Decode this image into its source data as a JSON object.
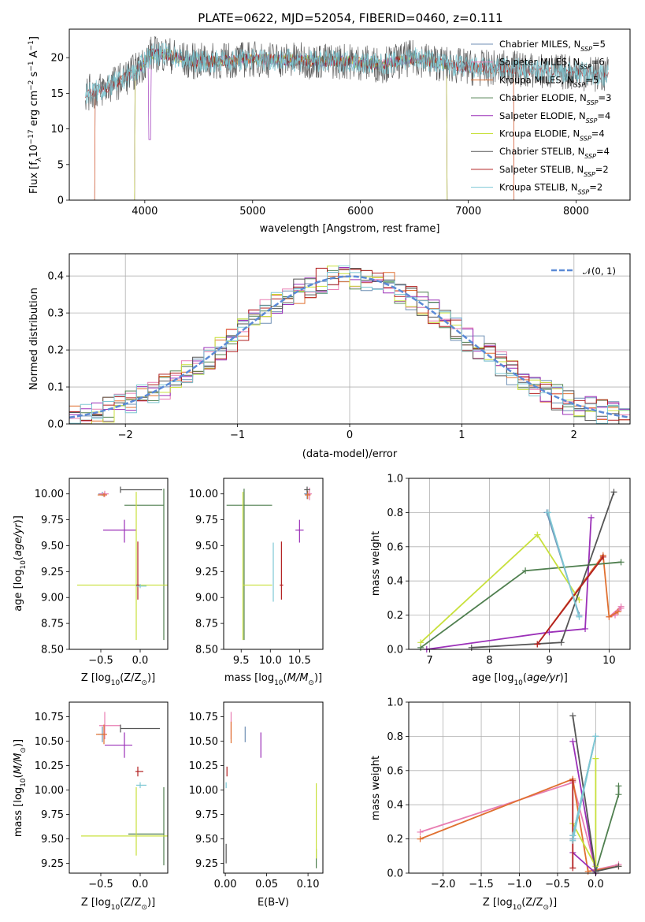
{
  "page": {
    "title": "PLATE=0622, MJD=52054, FIBERID=0460, z=0.111"
  },
  "colors": {
    "chabrier_miles": "#6f8fb4",
    "salpeter_miles": "#e87db2",
    "kroupa_miles": "#e07030",
    "chabrier_elodie": "#4f7f4f",
    "salpeter_elodie": "#9b30b8",
    "kroupa_elodie": "#c8e03c",
    "chabrier_stelib": "#555555",
    "salpeter_stelib": "#b22020",
    "kroupa_stelib": "#7ec8d4",
    "normal": "#5b8ad6"
  },
  "legend": {
    "spectrum": [
      {
        "text": "Chabrier MILES, N",
        "sub": "SSP",
        "tail": "=5",
        "color": "chabrier_miles"
      },
      {
        "text": "Salpeter MILES, N",
        "sub": "SSP",
        "tail": "=6",
        "color": "salpeter_miles"
      },
      {
        "text": "Kroupa MILES, N",
        "sub": "SSP",
        "tail": "=5",
        "color": "kroupa_miles"
      },
      {
        "text": "Chabrier ELODIE, N",
        "sub": "SSP",
        "tail": "=3",
        "color": "chabrier_elodie"
      },
      {
        "text": "Salpeter ELODIE, N",
        "sub": "SSP",
        "tail": "=4",
        "color": "salpeter_elodie"
      },
      {
        "text": "Kroupa ELODIE, N",
        "sub": "SSP",
        "tail": "=4",
        "color": "kroupa_elodie"
      },
      {
        "text": "Chabrier STELIB, N",
        "sub": "SSP",
        "tail": "=4",
        "color": "chabrier_stelib"
      },
      {
        "text": "Salpeter STELIB, N",
        "sub": "SSP",
        "tail": "=2",
        "color": "salpeter_stelib"
      },
      {
        "text": "Kroupa STELIB, N",
        "sub": "SSP",
        "tail": "=2",
        "color": "kroupa_stelib"
      }
    ],
    "normal": "𝒩(0, 1)"
  },
  "chart_data": [
    {
      "id": "spectrum",
      "type": "line",
      "xlabel": "wavelength [Angstrom, rest frame]",
      "ylabel": "Flux [f_λ 10^-17 erg cm^-2 s^-1 A^-1]",
      "xlim": [
        3300,
        8500
      ],
      "ylim": [
        0,
        24
      ],
      "xticks": [
        4000,
        5000,
        6000,
        7000,
        8000
      ],
      "yticks": [
        0,
        5,
        10,
        15,
        20
      ],
      "continuum": {
        "x": [
          3450,
          3600,
          3800,
          3950,
          4050,
          4200,
          4400,
          4700,
          5000,
          5300,
          5600,
          5900,
          6200,
          6500,
          6800,
          7100,
          7400,
          7700,
          8000,
          8300
        ],
        "y": [
          15.0,
          15.5,
          17.0,
          18.5,
          20.5,
          20.5,
          19.5,
          19.5,
          19.8,
          19.7,
          19.5,
          19.5,
          19.0,
          20.0,
          19.0,
          18.5,
          18.5,
          18.0,
          18.0,
          17.5
        ]
      },
      "model_ranges": [
        {
          "model": "chabrier_miles",
          "x": [
            3540,
            7420
          ]
        },
        {
          "model": "salpeter_miles",
          "x": [
            3540,
            7420
          ]
        },
        {
          "model": "kroupa_miles",
          "x": [
            3540,
            7420
          ]
        },
        {
          "model": "chabrier_elodie",
          "x": [
            3910,
            6800
          ]
        },
        {
          "model": "salpeter_elodie",
          "x": [
            3910,
            6800
          ]
        },
        {
          "model": "kroupa_elodie",
          "x": [
            3910,
            6800
          ]
        },
        {
          "model": "chabrier_stelib",
          "x": [
            3450,
            8300
          ]
        },
        {
          "model": "salpeter_stelib",
          "x": [
            3450,
            8300
          ]
        },
        {
          "model": "kroupa_stelib",
          "x": [
            3450,
            8300
          ]
        }
      ]
    },
    {
      "id": "residuals",
      "type": "area",
      "xlabel": "(data-model)/error",
      "ylabel": "Normed distribution",
      "xlim": [
        -2.5,
        2.5
      ],
      "ylim": [
        0,
        0.46
      ],
      "xticks": [
        -2,
        -1,
        0,
        1,
        2
      ],
      "yticks": [
        0.0,
        0.1,
        0.2,
        0.3,
        0.4
      ],
      "grid": true,
      "legend_position": "top-right",
      "bin_width": 0.1,
      "note": "step histograms of normalized residuals, one per model, compared with a standard normal"
    },
    {
      "id": "age_vs_Z",
      "type": "scatter",
      "xlabel": "Z [log10(Z/Z⊙)]",
      "ylabel": "age  [log10(age/yr)]",
      "xlim": [
        -0.9,
        0.35
      ],
      "ylim": [
        8.5,
        10.15
      ],
      "xticks": [
        -0.5,
        0.0
      ],
      "yticks": [
        8.5,
        8.75,
        9.0,
        9.25,
        9.5,
        9.75,
        10.0
      ],
      "points": [
        {
          "model": "chabrier_miles",
          "x": -0.48,
          "y": 10.0,
          "xerr": [
            0.05,
            0.05
          ],
          "yerr": [
            0.02,
            0.02
          ]
        },
        {
          "model": "salpeter_miles",
          "x": -0.45,
          "y": 10.0,
          "xerr": [
            0.07,
            0.05
          ],
          "yerr": [
            0.03,
            0.03
          ]
        },
        {
          "model": "kroupa_miles",
          "x": -0.46,
          "y": 9.99,
          "xerr": [
            0.08,
            0.04
          ],
          "yerr": [
            0.02,
            0.02
          ]
        },
        {
          "model": "chabrier_elodie",
          "x": 0.3,
          "y": 9.89,
          "xerr": [
            0.5,
            0.0
          ],
          "yerr": [
            1.3,
            0.16
          ]
        },
        {
          "model": "salpeter_elodie",
          "x": -0.2,
          "y": 9.65,
          "xerr": [
            0.27,
            0.15
          ],
          "yerr": [
            0.12,
            0.1
          ]
        },
        {
          "model": "kroupa_elodie",
          "x": -0.05,
          "y": 9.12,
          "xerr": [
            0.75,
            0.4
          ],
          "yerr": [
            0.53,
            0.9
          ]
        },
        {
          "model": "chabrier_stelib",
          "x": -0.25,
          "y": 10.04,
          "xerr": [
            0.0,
            0.53
          ],
          "yerr": [
            0.03,
            0.03
          ]
        },
        {
          "model": "salpeter_stelib",
          "x": -0.03,
          "y": 9.12,
          "xerr": [
            0.02,
            0.02
          ],
          "yerr": [
            0.14,
            0.42
          ]
        },
        {
          "model": "kroupa_stelib",
          "x": 0.0,
          "y": 9.11,
          "xerr": [
            0.05,
            0.08
          ],
          "yerr": [
            0.02,
            0.02
          ]
        }
      ]
    },
    {
      "id": "age_vs_mass",
      "type": "scatter",
      "xlabel": "mass [log10(M/M⊙)]",
      "ylabel": "",
      "xlim": [
        9.2,
        10.9
      ],
      "ylim": [
        8.5,
        10.15
      ],
      "xticks": [
        9.5,
        10.0,
        10.5
      ],
      "yticks": [
        8.5,
        8.75,
        9.0,
        9.25,
        9.5,
        9.75,
        10.0
      ],
      "points": [
        {
          "model": "chabrier_miles",
          "x": 10.63,
          "y": 10.0,
          "xerr": [
            0.05,
            0.05
          ],
          "yerr": [
            0.05,
            0.05
          ]
        },
        {
          "model": "salpeter_miles",
          "x": 10.67,
          "y": 10.0,
          "xerr": [
            0.04,
            0.04
          ],
          "yerr": [
            0.06,
            0.06
          ]
        },
        {
          "model": "kroupa_miles",
          "x": 10.64,
          "y": 9.99,
          "xerr": [
            0.05,
            0.05
          ],
          "yerr": [
            0.04,
            0.04
          ]
        },
        {
          "model": "chabrier_elodie",
          "x": 9.55,
          "y": 9.89,
          "xerr": [
            0.3,
            0.48
          ],
          "yerr": [
            1.3,
            0.16
          ]
        },
        {
          "model": "salpeter_elodie",
          "x": 10.5,
          "y": 9.65,
          "xerr": [
            0.07,
            0.07
          ],
          "yerr": [
            0.12,
            0.1
          ]
        },
        {
          "model": "kroupa_elodie",
          "x": 9.53,
          "y": 9.12,
          "xerr": [
            0.0,
            0.5
          ],
          "yerr": [
            0.53,
            0.9
          ]
        },
        {
          "model": "chabrier_stelib",
          "x": 10.63,
          "y": 10.04,
          "xerr": [
            0.05,
            0.05
          ],
          "yerr": [
            0.03,
            0.03
          ]
        },
        {
          "model": "salpeter_stelib",
          "x": 10.19,
          "y": 9.12,
          "xerr": [
            0.03,
            0.03
          ],
          "yerr": [
            0.14,
            0.42
          ]
        },
        {
          "model": "kroupa_stelib",
          "x": 10.05,
          "y": 9.11,
          "xerr": [
            0.0,
            0.0
          ],
          "yerr": [
            0.15,
            0.42
          ]
        }
      ]
    },
    {
      "id": "weight_vs_age",
      "type": "line",
      "xlabel": "age  [log10(age/yr)]",
      "ylabel": "mass weight",
      "xlim": [
        6.65,
        10.35
      ],
      "ylim": [
        0,
        1.0
      ],
      "xticks": [
        7,
        8,
        9,
        10
      ],
      "yticks": [
        0.0,
        0.2,
        0.4,
        0.6,
        0.8,
        1.0
      ],
      "grid": true,
      "series": [
        {
          "model": "chabrier_miles",
          "x": [
            9.5,
            8.96
          ],
          "y": [
            0.2,
            0.8
          ]
        },
        {
          "model": "salpeter_miles",
          "x": [
            10.2,
            10.0,
            10.1,
            10.2
          ],
          "y": [
            0.25,
            0.19,
            0.2,
            0.24
          ]
        },
        {
          "model": "kroupa_miles",
          "x": [
            8.8,
            9.9,
            10.0,
            10.15
          ],
          "y": [
            0.03,
            0.55,
            0.19,
            0.22
          ]
        },
        {
          "model": "chabrier_elodie",
          "x": [
            6.85,
            8.6,
            10.2
          ],
          "y": [
            0.01,
            0.46,
            0.51
          ]
        },
        {
          "model": "salpeter_elodie",
          "x": [
            6.95,
            9.0,
            9.6,
            9.7
          ],
          "y": [
            0.0,
            0.1,
            0.12,
            0.77
          ]
        },
        {
          "model": "kroupa_elodie",
          "x": [
            6.85,
            8.8,
            9.5
          ],
          "y": [
            0.04,
            0.67,
            0.29
          ]
        },
        {
          "model": "chabrier_stelib",
          "x": [
            7.7,
            9.2,
            10.08
          ],
          "y": [
            0.01,
            0.04,
            0.92
          ]
        },
        {
          "model": "salpeter_stelib",
          "x": [
            8.8,
            9.9
          ],
          "y": [
            0.03,
            0.54
          ]
        },
        {
          "model": "kroupa_stelib",
          "x": [
            9.5,
            8.98
          ],
          "y": [
            0.19,
            0.8
          ]
        }
      ]
    },
    {
      "id": "mass_vs_Z",
      "type": "scatter",
      "xlabel": "Z [log10(Z/Z⊙)]",
      "ylabel": "mass [log10(M/M⊙)]",
      "xlim": [
        -0.9,
        0.35
      ],
      "ylim": [
        9.15,
        10.9
      ],
      "xticks": [
        -0.5,
        0.0
      ],
      "yticks": [
        9.25,
        9.5,
        9.75,
        10.0,
        10.25,
        10.5,
        10.75
      ],
      "points": [
        {
          "model": "chabrier_miles",
          "x": -0.48,
          "y": 10.57,
          "xerr": [
            0.06,
            0.03
          ],
          "yerr": [
            0.08,
            0.08
          ]
        },
        {
          "model": "salpeter_miles",
          "x": -0.45,
          "y": 10.66,
          "xerr": [
            0.07,
            0.2
          ],
          "yerr": [
            0.14,
            0.14
          ]
        },
        {
          "model": "kroupa_miles",
          "x": -0.46,
          "y": 10.57,
          "xerr": [
            0.1,
            0.04
          ],
          "yerr": [
            0.1,
            0.1
          ]
        },
        {
          "model": "chabrier_elodie",
          "x": 0.3,
          "y": 9.55,
          "xerr": [
            0.45,
            0.0
          ],
          "yerr": [
            0.32,
            0.48
          ]
        },
        {
          "model": "salpeter_elodie",
          "x": -0.2,
          "y": 10.46,
          "xerr": [
            0.25,
            0.1
          ],
          "yerr": [
            0.13,
            0.13
          ]
        },
        {
          "model": "kroupa_elodie",
          "x": -0.05,
          "y": 9.53,
          "xerr": [
            0.7,
            0.4
          ],
          "yerr": [
            0.2,
            0.5
          ]
        },
        {
          "model": "chabrier_stelib",
          "x": -0.25,
          "y": 10.63,
          "xerr": [
            0.0,
            0.5
          ],
          "yerr": [
            0.04,
            0.04
          ]
        },
        {
          "model": "salpeter_stelib",
          "x": -0.03,
          "y": 10.19,
          "xerr": [
            0.03,
            0.07
          ],
          "yerr": [
            0.05,
            0.05
          ]
        },
        {
          "model": "kroupa_stelib",
          "x": 0.0,
          "y": 10.05,
          "xerr": [
            0.05,
            0.08
          ],
          "yerr": [
            0.03,
            0.03
          ]
        }
      ]
    },
    {
      "id": "mass_vs_ebv",
      "type": "scatter",
      "xlabel": "E(B-V)",
      "ylabel": "",
      "xlim": [
        -0.002,
        0.118
      ],
      "ylim": [
        9.15,
        10.9
      ],
      "xticks": [
        0.0,
        0.05,
        0.1
      ],
      "yticks": [
        9.25,
        9.5,
        9.75,
        10.0,
        10.25,
        10.5,
        10.75
      ],
      "points": [
        {
          "model": "chabrier_miles",
          "x": 0.024,
          "y": 10.57,
          "yerr": [
            0.08,
            0.08
          ]
        },
        {
          "model": "salpeter_miles",
          "x": 0.007,
          "y": 10.66,
          "yerr": [
            0.14,
            0.14
          ]
        },
        {
          "model": "kroupa_miles",
          "x": 0.007,
          "y": 10.6,
          "yerr": [
            0.12,
            0.1
          ]
        },
        {
          "model": "chabrier_elodie",
          "x": 0.11,
          "y": 9.3,
          "yerr": [
            0.1,
            0.1
          ]
        },
        {
          "model": "salpeter_elodie",
          "x": 0.043,
          "y": 10.46,
          "yerr": [
            0.13,
            0.13
          ]
        },
        {
          "model": "kroupa_elodie",
          "x": 0.11,
          "y": 9.65,
          "yerr": [
            0.35,
            0.42
          ]
        },
        {
          "model": "chabrier_stelib",
          "x": 0.001,
          "y": 9.35,
          "yerr": [
            0.1,
            0.1
          ]
        },
        {
          "model": "salpeter_stelib",
          "x": 0.002,
          "y": 10.19,
          "yerr": [
            0.05,
            0.05
          ]
        },
        {
          "model": "kroupa_stelib",
          "x": 0.001,
          "y": 10.05,
          "yerr": [
            0.03,
            0.03
          ]
        }
      ]
    },
    {
      "id": "weight_vs_Z",
      "type": "line",
      "xlabel": "Z [log10(Z/Z⊙)]",
      "ylabel": "mass weight",
      "xlim": [
        -2.45,
        0.45
      ],
      "ylim": [
        0,
        1.0
      ],
      "xticks": [
        -2.0,
        -1.5,
        -1.0,
        -0.5,
        0.0
      ],
      "yticks": [
        0.0,
        0.2,
        0.4,
        0.6,
        0.8,
        1.0
      ],
      "grid": true,
      "series": [
        {
          "model": "chabrier_miles",
          "x": [
            -0.3,
            0.0,
            -0.3
          ],
          "y": [
            0.2,
            0.8,
            0.22
          ]
        },
        {
          "model": "salpeter_miles",
          "x": [
            -2.3,
            -0.3,
            0.0,
            0.3
          ],
          "y": [
            0.24,
            0.53,
            0.02,
            0.05
          ]
        },
        {
          "model": "kroupa_miles",
          "x": [
            -2.3,
            -0.3,
            -0.1,
            0.3
          ],
          "y": [
            0.2,
            0.55,
            0.01,
            0.04
          ]
        },
        {
          "model": "chabrier_elodie",
          "x": [
            0.0,
            0.3,
            0.3
          ],
          "y": [
            0.01,
            0.46,
            0.51
          ]
        },
        {
          "model": "salpeter_elodie",
          "x": [
            -0.3,
            0.0,
            -0.3
          ],
          "y": [
            0.12,
            0.0,
            0.77
          ]
        },
        {
          "model": "kroupa_elodie",
          "x": [
            -0.3,
            0.0,
            0.0
          ],
          "y": [
            0.29,
            0.04,
            0.67
          ]
        },
        {
          "model": "chabrier_stelib",
          "x": [
            -0.3,
            0.0,
            0.3
          ],
          "y": [
            0.92,
            0.01,
            0.04
          ]
        },
        {
          "model": "salpeter_stelib",
          "x": [
            -0.3,
            -0.3
          ],
          "y": [
            0.03,
            0.54
          ]
        },
        {
          "model": "kroupa_stelib",
          "x": [
            -0.3,
            0.0,
            -0.3
          ],
          "y": [
            0.19,
            0.8,
            0.22
          ]
        }
      ]
    }
  ]
}
